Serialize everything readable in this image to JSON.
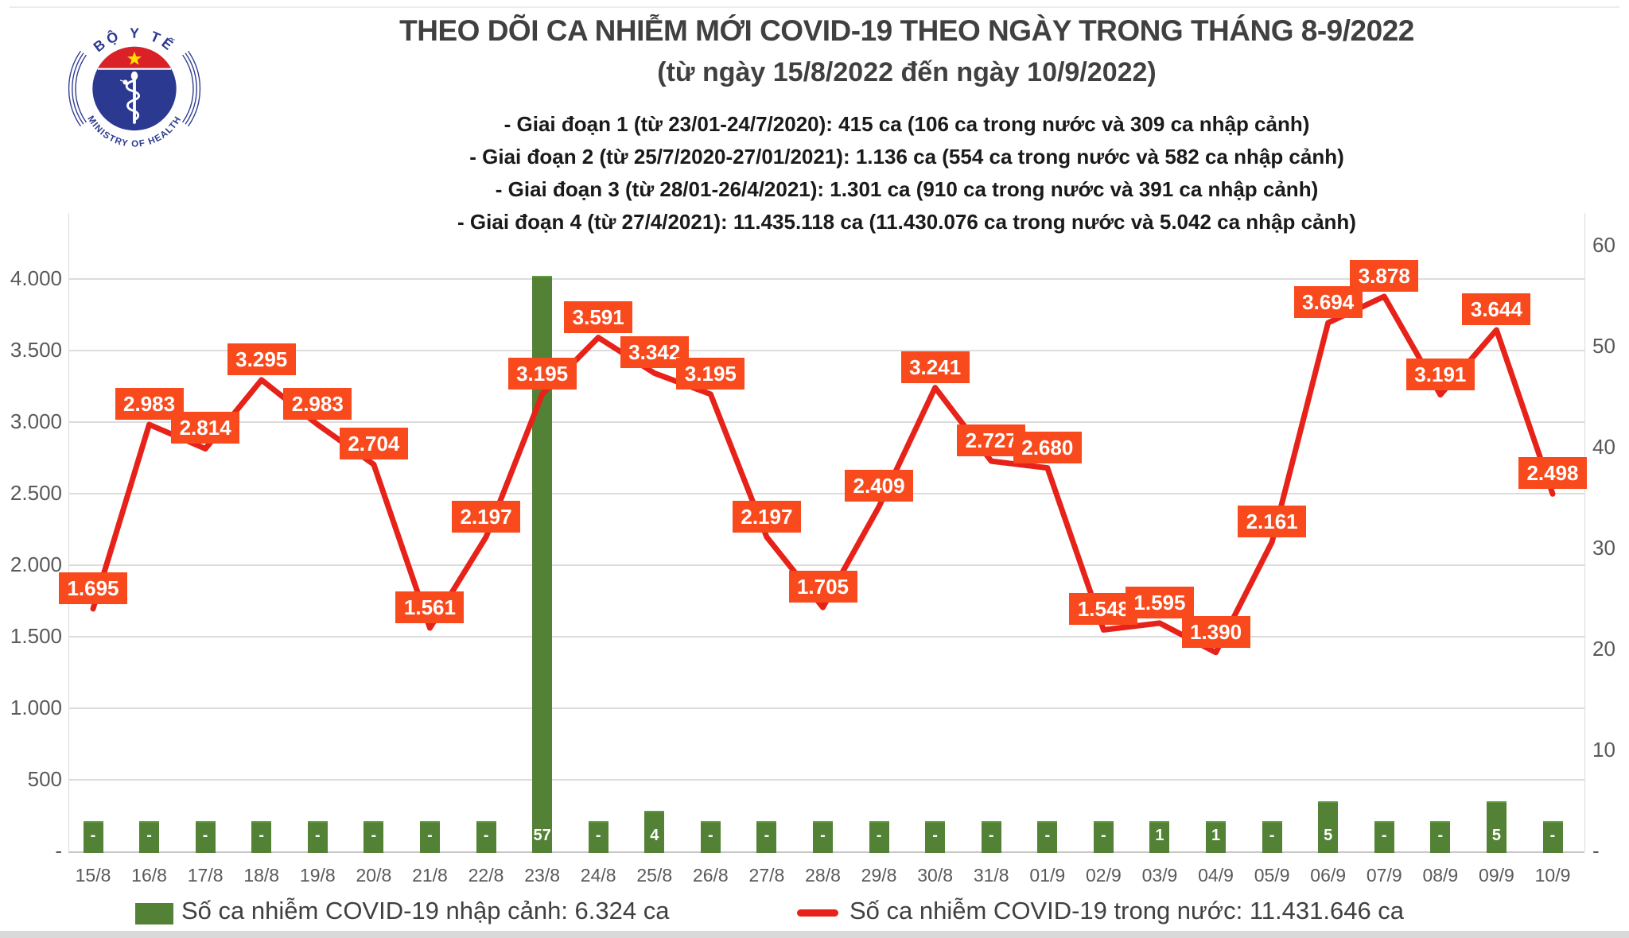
{
  "logo": {
    "top_text": "BỘ Y TẾ",
    "bottom_text": "MINISTRY OF HEALTH"
  },
  "header": {
    "title": "THEO DÕI CA NHIỄM MỚI COVID-19 THEO NGÀY TRONG THÁNG 8-9/2022",
    "subtitle": "(từ ngày 15/8/2022 đến ngày 10/9/2022)",
    "bullets": [
      "- Giai đoạn 1 (từ 23/01-24/7/2020): 415 ca (106 ca trong nước và 309 ca nhập cảnh)",
      "- Giai đoạn 2 (từ 25/7/2020-27/01/2021): 1.136 ca (554 ca trong nước và 582 ca nhập cảnh)",
      "- Giai đoạn 3 (từ 28/01-26/4/2021): 1.301 ca (910 ca trong nước và 391 ca nhập cảnh)",
      "- Giai đoạn 4 (từ 27/4/2021): 11.435.118 ca (11.430.076 ca trong nước và 5.042 ca nhập cảnh)"
    ]
  },
  "chart_data": {
    "type": "combo",
    "categories": [
      "15/8",
      "16/8",
      "17/8",
      "18/8",
      "19/8",
      "20/8",
      "21/8",
      "22/8",
      "23/8",
      "24/8",
      "25/8",
      "26/8",
      "27/8",
      "28/8",
      "29/8",
      "30/8",
      "31/8",
      "01/9",
      "02/9",
      "03/9",
      "04/9",
      "05/9",
      "06/9",
      "07/9",
      "08/9",
      "09/9",
      "10/9"
    ],
    "series": [
      {
        "name": "Số ca nhiễm COVID-19 nhập cảnh: 6.324 ca",
        "type": "bar",
        "axis": "right",
        "values": [
          0,
          0,
          0,
          0,
          0,
          0,
          0,
          0,
          57,
          0,
          4,
          0,
          0,
          0,
          0,
          0,
          0,
          0,
          0,
          1,
          1,
          0,
          5,
          0,
          0,
          5,
          0
        ],
        "labels": [
          "-",
          "-",
          "-",
          "-",
          "-",
          "-",
          "-",
          "-",
          "57",
          "-",
          "4",
          "-",
          "-",
          "-",
          "-",
          "-",
          "-",
          "-",
          "-",
          "1",
          "1",
          "-",
          "5",
          "-",
          "-",
          "5",
          "-"
        ]
      },
      {
        "name": "Số ca nhiễm COVID-19 trong nước: 11.431.646 ca",
        "type": "line",
        "axis": "left",
        "values": [
          1695,
          2983,
          2814,
          3295,
          2983,
          2704,
          1561,
          2197,
          3195,
          3591,
          3342,
          3195,
          2197,
          1705,
          2409,
          3241,
          2727,
          2680,
          1548,
          1595,
          1390,
          2161,
          3694,
          3878,
          3191,
          3644,
          2498
        ],
        "labels": [
          "1.695",
          "2.983",
          "2.814",
          "3.295",
          "2.983",
          "2.704",
          "1.561",
          "2.197",
          "3.195",
          "3.591",
          "3.342",
          "3.195",
          "2.197",
          "1.705",
          "2.409",
          "3.241",
          "2.727",
          "2.680",
          "1.548",
          "1.595",
          "1.390",
          "2.161",
          "3.694",
          "3.878",
          "3.191",
          "3.644",
          "2.498"
        ]
      }
    ],
    "left_axis": {
      "ticks": [
        {
          "label": "4.000",
          "value": 4000
        },
        {
          "label": "3.500",
          "value": 3500
        },
        {
          "label": "3.000",
          "value": 3000
        },
        {
          "label": "2.500",
          "value": 2500
        },
        {
          "label": "2.000",
          "value": 2000
        },
        {
          "label": "1.500",
          "value": 1500
        },
        {
          "label": "1.000",
          "value": 1000
        },
        {
          "label": "500",
          "value": 500
        },
        {
          "label": "-",
          "value": 0
        }
      ],
      "range": [
        0,
        4000
      ]
    },
    "right_axis": {
      "ticks": [
        {
          "label": "60",
          "value": 60
        },
        {
          "label": "50",
          "value": 50
        },
        {
          "label": "40",
          "value": 40
        },
        {
          "label": "30",
          "value": 30
        },
        {
          "label": "20",
          "value": 20
        },
        {
          "label": "10",
          "value": 10
        },
        {
          "label": "-",
          "value": 0
        }
      ],
      "range": [
        0,
        63
      ]
    },
    "grid": true,
    "legend_position": "bottom"
  },
  "colors": {
    "bar": "#538135",
    "bar_border": "#5F9A3C",
    "line": "#E62219",
    "label_box": "#F94A1D",
    "grid": "#DCDCDC",
    "axis_text": "#595959",
    "title_text": "#404040",
    "bullet_text": "#1A1A1A",
    "legend_text": "#404040",
    "logo_blue": "#2B3990",
    "logo_red": "#DA2128",
    "logo_star": "#FFDE00"
  }
}
